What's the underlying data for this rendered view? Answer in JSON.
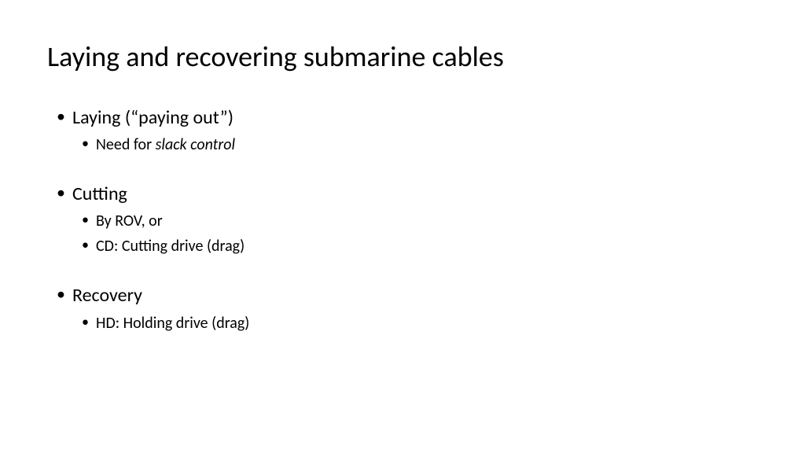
{
  "slide": {
    "title": "Laying and recovering submarine cables",
    "bullets": {
      "laying": {
        "label": "Laying (“paying out”)",
        "sub": {
          "slack_prefix": "Need for ",
          "slack_italic": "slack control"
        }
      },
      "cutting": {
        "label": "Cutting",
        "sub": {
          "rov": "By ROV, or",
          "cd": "CD: Cutting drive (drag)"
        }
      },
      "recovery": {
        "label": "Recovery",
        "sub": {
          "hd": "HD: Holding drive (drag)"
        }
      }
    }
  },
  "style": {
    "background_color": "#ffffff",
    "text_color": "#000000",
    "title_fontsize": 36,
    "level1_fontsize": 24,
    "level2_fontsize": 20,
    "font_family": "Calibri"
  }
}
